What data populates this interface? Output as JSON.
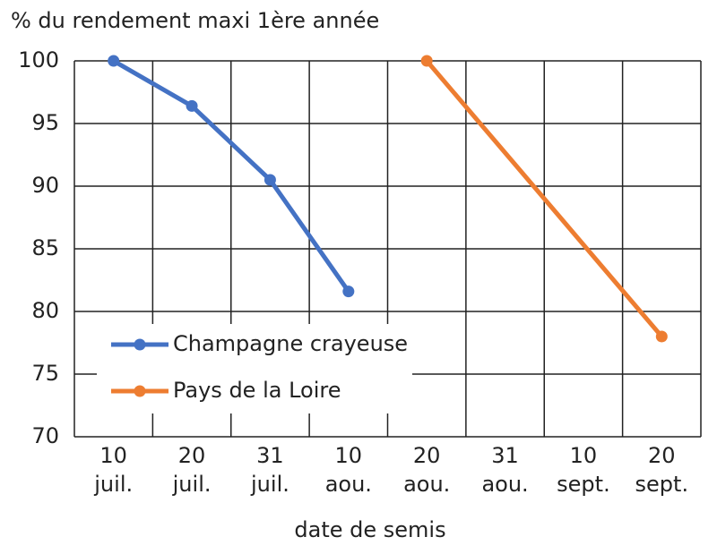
{
  "chart_data": {
    "type": "line",
    "y_label": "% du rendement maxi 1ère année",
    "x_label": "date de semis",
    "categories": [
      "10 juil.",
      "20 juil.",
      "31 juil.",
      "10 aou.",
      "20 aou.",
      "31 aou.",
      "10 sept.",
      "20 sept."
    ],
    "series": [
      {
        "name": "Champagne crayeuse",
        "color": "#4472c4",
        "x": [
          "10 juil.",
          "20 juil.",
          "31 juil.",
          "10 aou."
        ],
        "values": [
          100,
          96.4,
          90.5,
          81.6
        ]
      },
      {
        "name": "Pays de la Loire",
        "color": "#ed7d31",
        "x": [
          "20 aou.",
          "20 sept."
        ],
        "values": [
          100,
          78
        ]
      }
    ],
    "ylim": [
      70,
      100
    ],
    "yticks": [
      70,
      75,
      80,
      85,
      90,
      95,
      100
    ],
    "grid": true
  }
}
